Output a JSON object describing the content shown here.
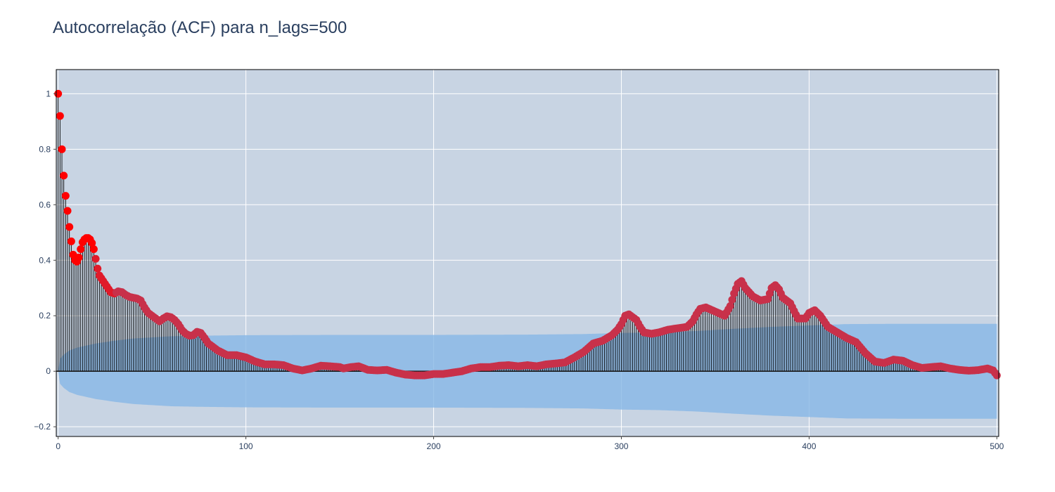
{
  "chart_data": {
    "type": "stem",
    "title": "Autocorrelação (ACF) para n_lags=500",
    "xlabel": "",
    "ylabel": "",
    "xlim": [
      -1,
      501
    ],
    "ylim": [
      -0.235,
      1.087
    ],
    "x_ticks": [
      0,
      100,
      200,
      300,
      400,
      500
    ],
    "x_tick_labels": [
      "0",
      "100",
      "200",
      "300",
      "400",
      "500"
    ],
    "y_ticks": [
      -0.2,
      0,
      0.2,
      0.4,
      0.6,
      0.8,
      1
    ],
    "y_tick_labels": [
      "−0.2",
      "0",
      "0.2",
      "0.4",
      "0.6",
      "0.8",
      "1"
    ],
    "grid": true,
    "legend": "none",
    "acf_knots": [
      [
        0,
        1.0
      ],
      [
        1,
        0.92
      ],
      [
        2,
        0.8
      ],
      [
        3,
        0.705
      ],
      [
        4,
        0.632
      ],
      [
        5,
        0.578
      ],
      [
        6,
        0.52
      ],
      [
        7,
        0.468
      ],
      [
        8,
        0.42
      ],
      [
        9,
        0.4
      ],
      [
        10,
        0.395
      ],
      [
        11,
        0.41
      ],
      [
        12,
        0.44
      ],
      [
        13,
        0.465
      ],
      [
        14,
        0.475
      ],
      [
        15,
        0.48
      ],
      [
        16,
        0.48
      ],
      [
        17,
        0.475
      ],
      [
        18,
        0.462
      ],
      [
        19,
        0.44
      ],
      [
        20,
        0.405
      ],
      [
        21,
        0.37
      ],
      [
        22,
        0.345
      ],
      [
        24,
        0.325
      ],
      [
        26,
        0.305
      ],
      [
        28,
        0.285
      ],
      [
        30,
        0.28
      ],
      [
        32,
        0.288
      ],
      [
        34,
        0.285
      ],
      [
        36,
        0.275
      ],
      [
        38,
        0.268
      ],
      [
        40,
        0.265
      ],
      [
        42,
        0.262
      ],
      [
        44,
        0.255
      ],
      [
        46,
        0.23
      ],
      [
        48,
        0.21
      ],
      [
        50,
        0.2
      ],
      [
        52,
        0.19
      ],
      [
        54,
        0.18
      ],
      [
        56,
        0.19
      ],
      [
        58,
        0.198
      ],
      [
        60,
        0.195
      ],
      [
        62,
        0.185
      ],
      [
        64,
        0.17
      ],
      [
        66,
        0.148
      ],
      [
        68,
        0.135
      ],
      [
        70,
        0.128
      ],
      [
        72,
        0.13
      ],
      [
        74,
        0.142
      ],
      [
        76,
        0.138
      ],
      [
        78,
        0.12
      ],
      [
        80,
        0.1
      ],
      [
        85,
        0.075
      ],
      [
        90,
        0.058
      ],
      [
        95,
        0.058
      ],
      [
        100,
        0.05
      ],
      [
        105,
        0.035
      ],
      [
        110,
        0.025
      ],
      [
        115,
        0.025
      ],
      [
        120,
        0.022
      ],
      [
        125,
        0.01
      ],
      [
        130,
        0.003
      ],
      [
        135,
        0.01
      ],
      [
        140,
        0.02
      ],
      [
        145,
        0.018
      ],
      [
        150,
        0.015
      ],
      [
        152,
        0.01
      ],
      [
        156,
        0.015
      ],
      [
        160,
        0.018
      ],
      [
        165,
        0.005
      ],
      [
        170,
        0.003
      ],
      [
        175,
        0.005
      ],
      [
        180,
        -0.005
      ],
      [
        185,
        -0.012
      ],
      [
        190,
        -0.015
      ],
      [
        195,
        -0.015
      ],
      [
        200,
        -0.01
      ],
      [
        205,
        -0.01
      ],
      [
        210,
        -0.005
      ],
      [
        215,
        0.0
      ],
      [
        220,
        0.01
      ],
      [
        225,
        0.015
      ],
      [
        230,
        0.015
      ],
      [
        235,
        0.02
      ],
      [
        240,
        0.022
      ],
      [
        245,
        0.018
      ],
      [
        250,
        0.022
      ],
      [
        255,
        0.018
      ],
      [
        260,
        0.025
      ],
      [
        265,
        0.028
      ],
      [
        270,
        0.032
      ],
      [
        275,
        0.05
      ],
      [
        280,
        0.07
      ],
      [
        285,
        0.1
      ],
      [
        290,
        0.11
      ],
      [
        295,
        0.13
      ],
      [
        298,
        0.15
      ],
      [
        300,
        0.17
      ],
      [
        302,
        0.2
      ],
      [
        304,
        0.205
      ],
      [
        306,
        0.195
      ],
      [
        308,
        0.185
      ],
      [
        310,
        0.16
      ],
      [
        312,
        0.14
      ],
      [
        316,
        0.135
      ],
      [
        320,
        0.14
      ],
      [
        325,
        0.15
      ],
      [
        330,
        0.155
      ],
      [
        335,
        0.16
      ],
      [
        338,
        0.18
      ],
      [
        340,
        0.205
      ],
      [
        342,
        0.225
      ],
      [
        345,
        0.23
      ],
      [
        350,
        0.215
      ],
      [
        355,
        0.2
      ],
      [
        358,
        0.235
      ],
      [
        360,
        0.28
      ],
      [
        362,
        0.315
      ],
      [
        364,
        0.325
      ],
      [
        366,
        0.3
      ],
      [
        370,
        0.27
      ],
      [
        374,
        0.255
      ],
      [
        378,
        0.26
      ],
      [
        380,
        0.3
      ],
      [
        382,
        0.31
      ],
      [
        384,
        0.295
      ],
      [
        386,
        0.265
      ],
      [
        390,
        0.245
      ],
      [
        394,
        0.19
      ],
      [
        398,
        0.19
      ],
      [
        400,
        0.21
      ],
      [
        403,
        0.22
      ],
      [
        406,
        0.2
      ],
      [
        410,
        0.16
      ],
      [
        415,
        0.14
      ],
      [
        420,
        0.12
      ],
      [
        425,
        0.105
      ],
      [
        430,
        0.065
      ],
      [
        435,
        0.035
      ],
      [
        440,
        0.03
      ],
      [
        445,
        0.042
      ],
      [
        450,
        0.038
      ],
      [
        455,
        0.022
      ],
      [
        460,
        0.012
      ],
      [
        465,
        0.015
      ],
      [
        470,
        0.018
      ],
      [
        475,
        0.01
      ],
      [
        480,
        0.005
      ],
      [
        485,
        0.002
      ],
      [
        490,
        0.004
      ],
      [
        495,
        0.01
      ],
      [
        498,
        0.003
      ],
      [
        500,
        -0.015
      ]
    ],
    "confidence_upper_knots": [
      [
        0,
        0.0
      ],
      [
        1,
        0.045
      ],
      [
        3,
        0.06
      ],
      [
        6,
        0.075
      ],
      [
        10,
        0.085
      ],
      [
        20,
        0.1
      ],
      [
        30,
        0.11
      ],
      [
        40,
        0.118
      ],
      [
        50,
        0.122
      ],
      [
        60,
        0.126
      ],
      [
        75,
        0.128
      ],
      [
        100,
        0.13
      ],
      [
        150,
        0.131
      ],
      [
        200,
        0.131
      ],
      [
        250,
        0.132
      ],
      [
        280,
        0.134
      ],
      [
        300,
        0.138
      ],
      [
        320,
        0.14
      ],
      [
        340,
        0.145
      ],
      [
        360,
        0.153
      ],
      [
        380,
        0.16
      ],
      [
        400,
        0.165
      ],
      [
        420,
        0.17
      ],
      [
        450,
        0.171
      ],
      [
        500,
        0.171
      ]
    ]
  }
}
